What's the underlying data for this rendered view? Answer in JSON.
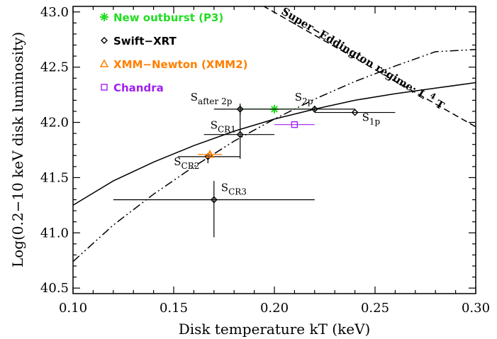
{
  "chart_data": {
    "type": "scatter",
    "xlabel": "Disk temperature kT (keV)",
    "ylabel": "Log(0.2−10 keV disk luminosity)",
    "xlim": [
      0.1,
      0.3
    ],
    "ylim": [
      40.45,
      43.05
    ],
    "x_ticks": [
      0.1,
      0.15,
      0.2,
      0.25,
      0.3
    ],
    "x_tick_labels": [
      "0.10",
      "0.15",
      "0.20",
      "0.25",
      "0.30"
    ],
    "y_ticks": [
      40.5,
      41.0,
      41.5,
      42.0,
      42.5,
      43.0
    ],
    "y_tick_labels": [
      "40.5",
      "41.0",
      "41.5",
      "42.0",
      "42.5",
      "43.0"
    ],
    "grid": false,
    "legend_position": "top-left",
    "legend": [
      {
        "label": "New outburst (P3)",
        "color": "#22dd22",
        "symbol": "asterisk"
      },
      {
        "label": "Swift−XRT",
        "color": "#000000",
        "symbol": "diamond"
      },
      {
        "label": "XMM−Newton (XMM2)",
        "color": "#ff7f00",
        "symbol": "triangle"
      },
      {
        "label": "Chandra",
        "color": "#a020f0",
        "symbol": "square"
      }
    ],
    "series": [
      {
        "name": "New outburst (P3)",
        "color": "#22dd22",
        "symbol": "asterisk",
        "points": [
          {
            "x": 0.2,
            "y": 42.12,
            "xerr": [
              0.017,
              0.02
            ],
            "yerr": [
              0.03,
              0.03
            ]
          }
        ]
      },
      {
        "name": "Swift−XRT",
        "color": "#000000",
        "symbol": "diamond",
        "points": [
          {
            "x": 0.183,
            "y": 42.12,
            "xerr": [
              0.013,
              0.017
            ],
            "yerr": [
              0.05,
              0.05
            ],
            "label": "S",
            "sub": "after 2p"
          },
          {
            "x": 0.22,
            "y": 42.12,
            "xerr": [
              0.02,
              0.02
            ],
            "yerr": [
              0.03,
              0.03
            ],
            "label": "S",
            "sub": "2p"
          },
          {
            "x": 0.24,
            "y": 42.09,
            "xerr": [
              0.02,
              0.02
            ],
            "yerr": [
              0.0,
              0.0
            ],
            "label": "S",
            "sub": "1p"
          },
          {
            "x": 0.183,
            "y": 41.89,
            "xerr": [
              0.018,
              0.017
            ],
            "yerr": [
              0.22,
              0.26
            ],
            "label": "S",
            "sub": "CR1"
          },
          {
            "x": 0.167,
            "y": 41.69,
            "xerr": [
              0.015,
              0.016
            ],
            "yerr": [
              0.06,
              0.03
            ],
            "label": "S",
            "sub": "CR2"
          },
          {
            "x": 0.17,
            "y": 41.3,
            "xerr": [
              0.05,
              0.05
            ],
            "yerr": [
              0.34,
              0.17
            ],
            "label": "S",
            "sub": "CR3"
          }
        ]
      },
      {
        "name": "XMM−Newton (XMM2)",
        "color": "#ff7f00",
        "symbol": "triangle",
        "points": [
          {
            "x": 0.168,
            "y": 41.71,
            "xerr": [
              0.006,
              0.006
            ],
            "yerr": [
              0.02,
              0.02
            ]
          }
        ]
      },
      {
        "name": "Chandra",
        "color": "#a020f0",
        "symbol": "square",
        "points": [
          {
            "x": 0.21,
            "y": 41.98,
            "xerr": [
              0.01,
              0.01
            ],
            "yerr": [
              0.0,
              0.0
            ]
          }
        ]
      }
    ],
    "curves": [
      {
        "style": "solid",
        "x": [
          0.1,
          0.12,
          0.14,
          0.16,
          0.18,
          0.2,
          0.22,
          0.24,
          0.26,
          0.28,
          0.3
        ],
        "y": [
          41.25,
          41.47,
          41.64,
          41.79,
          41.92,
          42.03,
          42.12,
          42.2,
          42.26,
          42.31,
          42.36
        ]
      },
      {
        "style": "dash-dot-dot",
        "x": [
          0.1,
          0.12,
          0.14,
          0.16,
          0.18,
          0.2,
          0.22,
          0.24,
          0.26,
          0.28,
          0.3
        ],
        "y": [
          40.74,
          41.07,
          41.35,
          41.6,
          41.83,
          42.03,
          42.21,
          42.37,
          42.51,
          42.64,
          42.66
        ]
      },
      {
        "style": "dashed",
        "x": [
          0.19,
          0.3
        ],
        "y": [
          43.1,
          41.96
        ]
      }
    ],
    "annotations": [
      {
        "text": "Super−Eddington regime: L ",
        "sup": "4",
        "after": " T",
        "x": 0.243,
        "y": 42.55,
        "angle": 31
      }
    ]
  }
}
